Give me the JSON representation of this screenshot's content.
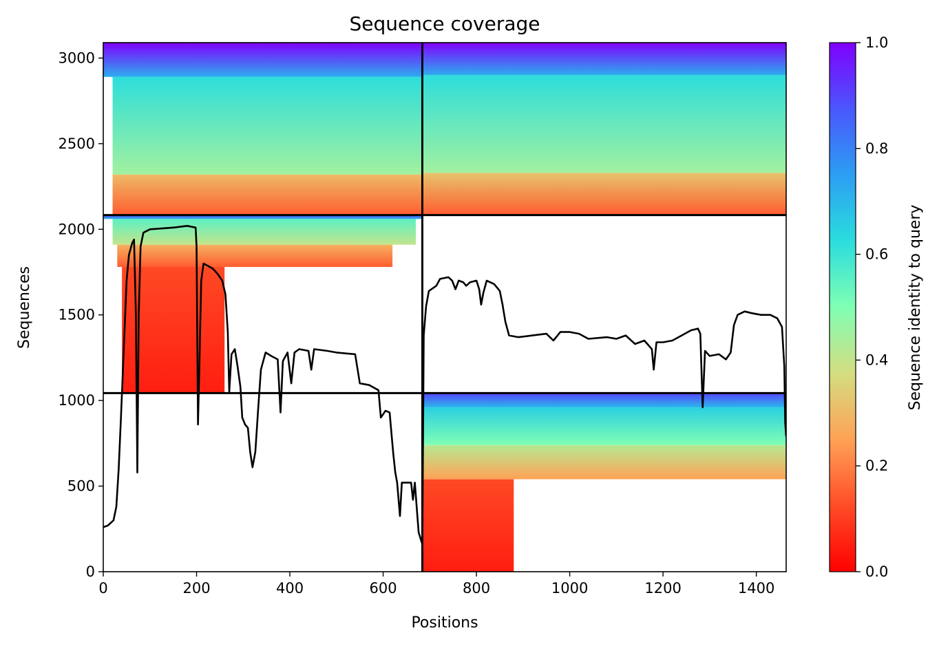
{
  "chart_data": {
    "type": "heatmap",
    "title": "Sequence coverage",
    "xlabel": "Positions",
    "ylabel": "Sequences",
    "xlim": [
      0,
      1464
    ],
    "ylim": [
      0,
      3090
    ],
    "x_ticks": [
      "0",
      "200",
      "400",
      "600",
      "800",
      "1000",
      "1200",
      "1400"
    ],
    "y_ticks": [
      "0",
      "500",
      "1000",
      "1500",
      "2000",
      "2500",
      "3000"
    ],
    "grid": false,
    "colormap": "rainbow_r",
    "colorbar": {
      "label": "Sequence identity to query",
      "range": [
        0.0,
        1.0
      ],
      "ticks": [
        "0.0",
        "0.2",
        "0.4",
        "0.6",
        "0.8",
        "1.0"
      ]
    },
    "dividers": {
      "vertical_x": [
        684
      ],
      "horizontal_y": [
        1043,
        2083
      ]
    },
    "blocks": [
      {
        "x": [
          0,
          684
        ],
        "y": [
          2083,
          3090
        ],
        "bands": [
          {
            "y": [
              2083,
              2320
            ],
            "identity": [
              0.15,
              0.3
            ],
            "x": [
              20,
              684
            ]
          },
          {
            "y": [
              2320,
              2890
            ],
            "identity": [
              0.45,
              0.62
            ],
            "x": [
              20,
              684
            ]
          },
          {
            "y": [
              2890,
              3090
            ],
            "identity": [
              0.72,
              1.0
            ],
            "x": [
              0,
              684
            ]
          }
        ]
      },
      {
        "x": [
          684,
          1464
        ],
        "y": [
          2083,
          3090
        ],
        "bands": [
          {
            "y": [
              2083,
              2330
            ],
            "identity": [
              0.15,
              0.32
            ],
            "x": [
              684,
              1464
            ]
          },
          {
            "y": [
              2330,
              2900
            ],
            "identity": [
              0.45,
              0.62
            ],
            "x": [
              684,
              1464
            ]
          },
          {
            "y": [
              2900,
              3090
            ],
            "identity": [
              0.72,
              1.0
            ],
            "x": [
              684,
              1464
            ]
          }
        ]
      },
      {
        "x": [
          0,
          684
        ],
        "y": [
          1043,
          2083
        ],
        "bands": [
          {
            "y": [
              1043,
              1780
            ],
            "identity": [
              0.05,
              0.12
            ],
            "x": [
              40,
              260
            ]
          },
          {
            "y": [
              1780,
              1910
            ],
            "identity": [
              0.15,
              0.28
            ],
            "x": [
              30,
              620
            ]
          },
          {
            "y": [
              1910,
              2060
            ],
            "identity": [
              0.4,
              0.55
            ],
            "x": [
              20,
              670
            ]
          },
          {
            "y": [
              2060,
              2083
            ],
            "identity": [
              0.7,
              0.9
            ],
            "x": [
              0,
              684
            ]
          }
        ]
      },
      {
        "x": [
          684,
          1464
        ],
        "y": [
          0,
          1043
        ],
        "bands": [
          {
            "y": [
              0,
              540
            ],
            "identity": [
              0.05,
              0.12
            ],
            "x": [
              684,
              880
            ]
          },
          {
            "y": [
              540,
              740
            ],
            "identity": [
              0.25,
              0.42
            ],
            "x": [
              684,
              1464
            ]
          },
          {
            "y": [
              740,
              960
            ],
            "identity": [
              0.5,
              0.65
            ],
            "x": [
              684,
              1464
            ]
          },
          {
            "y": [
              960,
              1043
            ],
            "identity": [
              0.7,
              0.9
            ],
            "x": [
              684,
              1464
            ]
          }
        ]
      }
    ],
    "coverage_line": [
      [
        0,
        260
      ],
      [
        10,
        270
      ],
      [
        22,
        300
      ],
      [
        28,
        380
      ],
      [
        33,
        600
      ],
      [
        38,
        900
      ],
      [
        44,
        1300
      ],
      [
        50,
        1700
      ],
      [
        55,
        1850
      ],
      [
        62,
        1920
      ],
      [
        66,
        1940
      ],
      [
        70,
        1500
      ],
      [
        73,
        580
      ],
      [
        76,
        1500
      ],
      [
        80,
        1900
      ],
      [
        86,
        1980
      ],
      [
        100,
        2000
      ],
      [
        150,
        2010
      ],
      [
        180,
        2020
      ],
      [
        198,
        2010
      ],
      [
        200,
        1900
      ],
      [
        203,
        860
      ],
      [
        206,
        1200
      ],
      [
        210,
        1700
      ],
      [
        215,
        1800
      ],
      [
        235,
        1770
      ],
      [
        245,
        1740
      ],
      [
        255,
        1700
      ],
      [
        262,
        1620
      ],
      [
        267,
        1400
      ],
      [
        270,
        1050
      ],
      [
        275,
        1270
      ],
      [
        282,
        1300
      ],
      [
        288,
        1200
      ],
      [
        294,
        1080
      ],
      [
        298,
        900
      ],
      [
        304,
        860
      ],
      [
        310,
        840
      ],
      [
        315,
        700
      ],
      [
        320,
        610
      ],
      [
        326,
        700
      ],
      [
        332,
        950
      ],
      [
        338,
        1180
      ],
      [
        348,
        1280
      ],
      [
        360,
        1260
      ],
      [
        374,
        1240
      ],
      [
        380,
        930
      ],
      [
        385,
        1230
      ],
      [
        395,
        1280
      ],
      [
        403,
        1100
      ],
      [
        410,
        1280
      ],
      [
        420,
        1300
      ],
      [
        440,
        1290
      ],
      [
        446,
        1180
      ],
      [
        452,
        1300
      ],
      [
        480,
        1290
      ],
      [
        500,
        1280
      ],
      [
        540,
        1270
      ],
      [
        550,
        1100
      ],
      [
        570,
        1090
      ],
      [
        590,
        1060
      ],
      [
        595,
        900
      ],
      [
        605,
        940
      ],
      [
        614,
        930
      ],
      [
        618,
        800
      ],
      [
        622,
        680
      ],
      [
        626,
        580
      ],
      [
        630,
        520
      ],
      [
        636,
        325
      ],
      [
        640,
        520
      ],
      [
        660,
        520
      ],
      [
        664,
        420
      ],
      [
        668,
        520
      ],
      [
        676,
        230
      ],
      [
        684,
        160
      ],
      [
        687,
        1380
      ],
      [
        692,
        1550
      ],
      [
        698,
        1640
      ],
      [
        714,
        1670
      ],
      [
        722,
        1710
      ],
      [
        740,
        1720
      ],
      [
        748,
        1700
      ],
      [
        755,
        1650
      ],
      [
        762,
        1700
      ],
      [
        772,
        1690
      ],
      [
        778,
        1670
      ],
      [
        786,
        1690
      ],
      [
        800,
        1700
      ],
      [
        806,
        1650
      ],
      [
        810,
        1560
      ],
      [
        815,
        1630
      ],
      [
        822,
        1700
      ],
      [
        838,
        1680
      ],
      [
        850,
        1640
      ],
      [
        856,
        1560
      ],
      [
        862,
        1460
      ],
      [
        870,
        1380
      ],
      [
        890,
        1370
      ],
      [
        920,
        1380
      ],
      [
        950,
        1390
      ],
      [
        965,
        1350
      ],
      [
        980,
        1400
      ],
      [
        1000,
        1400
      ],
      [
        1020,
        1390
      ],
      [
        1040,
        1360
      ],
      [
        1080,
        1370
      ],
      [
        1100,
        1360
      ],
      [
        1120,
        1380
      ],
      [
        1140,
        1330
      ],
      [
        1160,
        1350
      ],
      [
        1176,
        1300
      ],
      [
        1180,
        1180
      ],
      [
        1186,
        1340
      ],
      [
        1200,
        1340
      ],
      [
        1220,
        1350
      ],
      [
        1240,
        1380
      ],
      [
        1260,
        1410
      ],
      [
        1275,
        1420
      ],
      [
        1280,
        1390
      ],
      [
        1285,
        960
      ],
      [
        1290,
        1290
      ],
      [
        1300,
        1260
      ],
      [
        1320,
        1270
      ],
      [
        1335,
        1240
      ],
      [
        1345,
        1280
      ],
      [
        1352,
        1440
      ],
      [
        1360,
        1500
      ],
      [
        1375,
        1520
      ],
      [
        1390,
        1510
      ],
      [
        1410,
        1500
      ],
      [
        1430,
        1500
      ],
      [
        1445,
        1480
      ],
      [
        1455,
        1430
      ],
      [
        1460,
        1200
      ],
      [
        1462,
        870
      ],
      [
        1464,
        790
      ]
    ]
  }
}
